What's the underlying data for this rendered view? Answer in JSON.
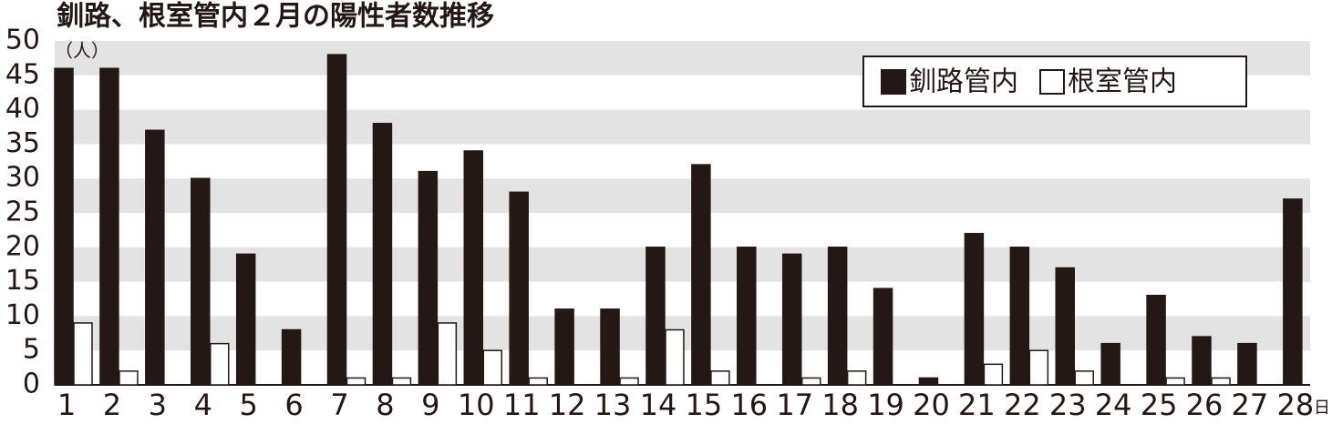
{
  "chart_data": {
    "type": "bar",
    "title": "釧路、根室管内２月の陽性者数推移",
    "y_unit_label": "（人）",
    "x_unit_label": "日",
    "categories": [
      "1",
      "2",
      "3",
      "4",
      "5",
      "6",
      "7",
      "8",
      "9",
      "10",
      "11",
      "12",
      "13",
      "14",
      "15",
      "16",
      "17",
      "18",
      "19",
      "20",
      "21",
      "22",
      "23",
      "24",
      "25",
      "26",
      "27",
      "28"
    ],
    "series": [
      {
        "name": "釧路管内",
        "color": "#231815",
        "values": [
          46,
          46,
          37,
          30,
          19,
          8,
          48,
          38,
          31,
          34,
          28,
          11,
          11,
          20,
          32,
          20,
          19,
          20,
          14,
          1,
          22,
          20,
          17,
          6,
          13,
          7,
          6,
          27
        ]
      },
      {
        "name": "根室管内",
        "color": "#ffffff",
        "values": [
          9,
          2,
          0,
          6,
          0,
          0,
          1,
          1,
          9,
          5,
          1,
          0,
          1,
          8,
          2,
          0,
          1,
          2,
          0,
          0,
          3,
          5,
          2,
          0,
          1,
          1,
          0,
          0
        ]
      }
    ],
    "ylim": [
      0,
      50
    ],
    "yticks": [
      0,
      5,
      10,
      15,
      20,
      25,
      30,
      35,
      40,
      45,
      50
    ],
    "grid": true,
    "legend": "upper right"
  }
}
